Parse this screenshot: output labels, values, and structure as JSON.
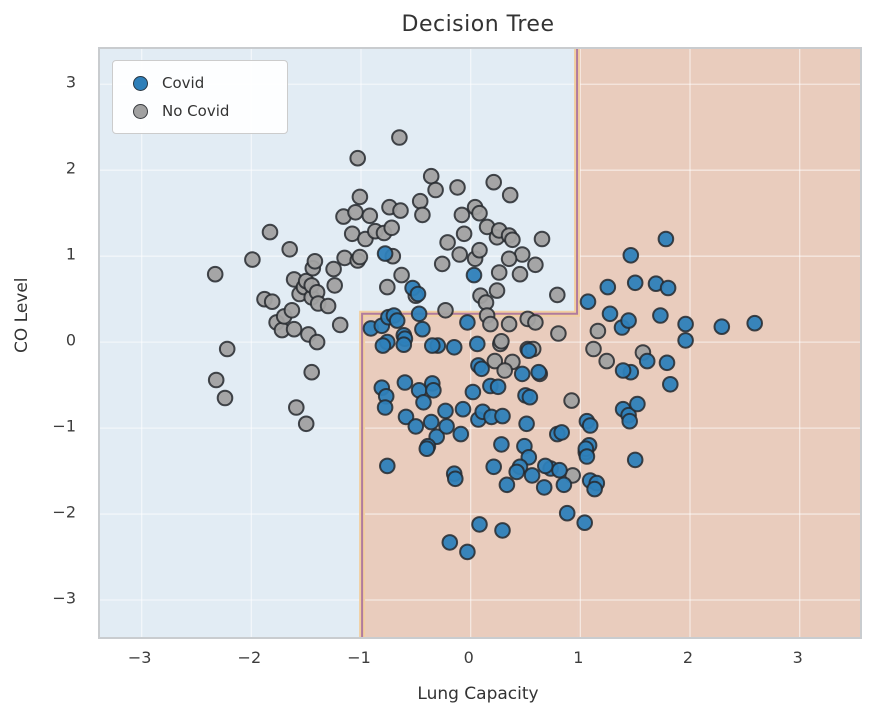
{
  "chart_data": {
    "type": "scatter",
    "title": "Decision Tree",
    "xlabel": "Lung Capacity",
    "ylabel": "CO Level",
    "xlim": [
      -3.38,
      3.55
    ],
    "ylim": [
      -3.43,
      3.41
    ],
    "xtick_values": [
      -3,
      -2,
      -1,
      0,
      1,
      2,
      3
    ],
    "xtick_labels": [
      "−3",
      "−2",
      "−1",
      "0",
      "1",
      "2",
      "3"
    ],
    "ytick_values": [
      -3,
      -2,
      -1,
      0,
      1,
      2,
      3
    ],
    "ytick_labels": [
      "−3",
      "−2",
      "−1",
      "0",
      "1",
      "2",
      "3"
    ],
    "grid": true,
    "grid_color": "rgba(255,255,255,0.55)",
    "frame_color": "#c9cccf",
    "marker": {
      "radius": 7.3,
      "edge_color": "#26292e",
      "edge_width": 2,
      "fill_opacity": 0.95
    },
    "decision_regions": {
      "covid_region_color": "#e9ccbd",
      "no_covid_region_color": "#e2ecf4",
      "boundary_x_left": -0.99,
      "boundary_x_right": 0.97,
      "boundary_y_split": 0.33,
      "boundary_outer_color": "#f2cfa0",
      "boundary_inner_color": "#a8719d"
    },
    "legend": {
      "position": "upper-left",
      "entries": [
        {
          "label": "Covid",
          "color": "#2e7fb9"
        },
        {
          "label": "No Covid",
          "color": "#a1a1a1"
        }
      ]
    },
    "series": [
      {
        "name": "No Covid",
        "color": "#a1a1a1",
        "points": [
          [
            -2.33,
            0.79
          ],
          [
            -2.22,
            -0.08
          ],
          [
            -2.32,
            -0.44
          ],
          [
            -2.24,
            -0.65
          ],
          [
            -1.99,
            0.96
          ],
          [
            -1.88,
            0.5
          ],
          [
            -1.81,
            0.47
          ],
          [
            -1.83,
            1.28
          ],
          [
            -1.77,
            0.23
          ],
          [
            -1.72,
            0.14
          ],
          [
            -1.7,
            0.3
          ],
          [
            -1.65,
            1.08
          ],
          [
            -1.63,
            0.37
          ],
          [
            -1.61,
            0.73
          ],
          [
            -1.61,
            0.15
          ],
          [
            -1.59,
            -0.76
          ],
          [
            -1.56,
            0.56
          ],
          [
            -1.52,
            0.64
          ],
          [
            -1.5,
            -0.95
          ],
          [
            -1.5,
            0.71
          ],
          [
            -1.48,
            0.09
          ],
          [
            -1.45,
            0.52
          ],
          [
            -1.45,
            0.66
          ],
          [
            -1.44,
            0.86
          ],
          [
            -1.42,
            0.94
          ],
          [
            -1.45,
            -0.35
          ],
          [
            -1.4,
            0.58
          ],
          [
            -1.4,
            0.0
          ],
          [
            -1.39,
            0.45
          ],
          [
            -1.3,
            0.42
          ],
          [
            -1.25,
            0.85
          ],
          [
            -1.24,
            0.66
          ],
          [
            -1.19,
            0.2
          ],
          [
            -1.15,
            0.98
          ],
          [
            -1.16,
            1.46
          ],
          [
            -1.08,
            1.26
          ],
          [
            -1.05,
            1.51
          ],
          [
            -1.03,
            0.95
          ],
          [
            -1.03,
            2.14
          ],
          [
            -1.01,
            1.69
          ],
          [
            -1.01,
            0.99
          ],
          [
            -0.96,
            1.2
          ],
          [
            -0.92,
            1.47
          ],
          [
            -0.87,
            1.29
          ],
          [
            -0.79,
            1.27
          ],
          [
            -0.76,
            0.64
          ],
          [
            -0.74,
            1.57
          ],
          [
            -0.71,
            1.0
          ],
          [
            -0.72,
            1.33
          ],
          [
            -0.65,
            2.38
          ],
          [
            -0.64,
            1.53
          ],
          [
            -0.63,
            0.78
          ],
          [
            -0.5,
            0.54
          ],
          [
            -0.46,
            1.64
          ],
          [
            -0.44,
            1.48
          ],
          [
            -0.36,
            1.93
          ],
          [
            -0.32,
            1.77
          ],
          [
            -0.26,
            0.91
          ],
          [
            -0.23,
            0.37
          ],
          [
            -0.21,
            1.16
          ],
          [
            -0.12,
            1.8
          ],
          [
            -0.08,
            1.48
          ],
          [
            -0.06,
            1.26
          ],
          [
            -0.1,
            1.02
          ],
          [
            0.04,
            1.57
          ],
          [
            0.08,
            1.5
          ],
          [
            0.04,
            0.97
          ],
          [
            0.08,
            1.07
          ],
          [
            0.15,
            1.34
          ],
          [
            0.21,
            1.86
          ],
          [
            0.24,
            1.22
          ],
          [
            0.26,
            1.3
          ],
          [
            0.35,
            1.24
          ],
          [
            0.36,
            1.71
          ],
          [
            0.38,
            1.19
          ],
          [
            0.47,
            1.02
          ],
          [
            0.35,
            0.97
          ],
          [
            0.26,
            0.81
          ],
          [
            0.45,
            0.79
          ],
          [
            0.59,
            0.9
          ],
          [
            0.65,
            1.2
          ],
          [
            0.24,
            0.6
          ],
          [
            0.09,
            0.54
          ],
          [
            0.14,
            0.46
          ],
          [
            0.79,
            0.55
          ],
          [
            0.15,
            0.31
          ],
          [
            0.18,
            0.21
          ],
          [
            0.35,
            0.21
          ],
          [
            0.52,
            0.27
          ],
          [
            0.59,
            0.23
          ],
          [
            0.8,
            0.1
          ],
          [
            0.27,
            -0.02
          ],
          [
            0.52,
            -0.08
          ],
          [
            0.22,
            -0.22
          ],
          [
            0.38,
            -0.23
          ],
          [
            0.31,
            -0.33
          ],
          [
            0.63,
            -0.37
          ],
          [
            0.57,
            -0.08
          ],
          [
            0.92,
            -0.68
          ],
          [
            0.93,
            -1.55
          ],
          [
            1.12,
            -0.08
          ],
          [
            1.24,
            -0.22
          ],
          [
            1.16,
            0.13
          ],
          [
            1.57,
            -0.12
          ],
          [
            0.28,
            0.01
          ]
        ]
      },
      {
        "name": "Covid",
        "color": "#2e7fb9",
        "points": [
          [
            -0.91,
            0.16
          ],
          [
            -0.81,
            0.19
          ],
          [
            -0.75,
            0.29
          ],
          [
            -0.7,
            0.31
          ],
          [
            -0.67,
            0.25
          ],
          [
            -0.78,
            1.03
          ],
          [
            -0.53,
            0.63
          ],
          [
            -0.48,
            0.56
          ],
          [
            0.03,
            0.78
          ],
          [
            -0.76,
            0.0
          ],
          [
            -0.61,
            0.08
          ],
          [
            -0.6,
            0.04
          ],
          [
            -0.47,
            0.33
          ],
          [
            -0.44,
            0.15
          ],
          [
            -0.3,
            -0.04
          ],
          [
            -0.15,
            -0.06
          ],
          [
            -0.03,
            0.23
          ],
          [
            0.06,
            -0.02
          ],
          [
            0.53,
            -0.1
          ],
          [
            1.07,
            0.47
          ],
          [
            1.25,
            0.64
          ],
          [
            1.27,
            0.33
          ],
          [
            1.38,
            0.17
          ],
          [
            1.44,
            0.25
          ],
          [
            1.73,
            0.31
          ],
          [
            1.96,
            0.21
          ],
          [
            2.29,
            0.18
          ],
          [
            2.59,
            0.22
          ],
          [
            1.96,
            0.02
          ],
          [
            1.78,
            1.2
          ],
          [
            1.46,
            1.01
          ],
          [
            1.5,
            0.69
          ],
          [
            1.69,
            0.68
          ],
          [
            1.8,
            0.63
          ],
          [
            -0.8,
            -0.04
          ],
          [
            -0.61,
            -0.03
          ],
          [
            -0.35,
            -0.04
          ],
          [
            0.07,
            -0.27
          ],
          [
            -0.81,
            -0.53
          ],
          [
            -0.77,
            -0.63
          ],
          [
            -0.78,
            -0.76
          ],
          [
            -0.6,
            -0.47
          ],
          [
            -0.47,
            -0.56
          ],
          [
            -0.43,
            -0.7
          ],
          [
            -0.35,
            -0.48
          ],
          [
            -0.34,
            -0.56
          ],
          [
            -0.59,
            -0.87
          ],
          [
            -0.5,
            -0.98
          ],
          [
            -0.36,
            -0.93
          ],
          [
            -0.31,
            -1.1
          ],
          [
            -0.23,
            -0.8
          ],
          [
            -0.22,
            -0.98
          ],
          [
            -0.07,
            -0.78
          ],
          [
            -0.09,
            -1.07
          ],
          [
            0.02,
            -0.58
          ],
          [
            0.07,
            -0.9
          ],
          [
            -0.39,
            -1.21
          ],
          [
            -0.76,
            -1.44
          ],
          [
            -0.4,
            -1.24
          ],
          [
            -0.15,
            -1.53
          ],
          [
            -0.14,
            -1.59
          ],
          [
            0.1,
            -0.31
          ],
          [
            0.18,
            -0.51
          ],
          [
            0.25,
            -0.52
          ],
          [
            0.11,
            -0.81
          ],
          [
            0.19,
            -0.87
          ],
          [
            0.29,
            -0.86
          ],
          [
            0.5,
            -0.62
          ],
          [
            0.54,
            -0.64
          ],
          [
            0.47,
            -0.37
          ],
          [
            0.62,
            -0.35
          ],
          [
            0.51,
            -0.95
          ],
          [
            0.28,
            -1.19
          ],
          [
            0.49,
            -1.21
          ],
          [
            0.53,
            -1.34
          ],
          [
            0.21,
            -1.45
          ],
          [
            0.45,
            -1.45
          ],
          [
            0.42,
            -1.51
          ],
          [
            0.33,
            -1.66
          ],
          [
            0.56,
            -1.55
          ],
          [
            0.67,
            -1.69
          ],
          [
            0.73,
            -1.47
          ],
          [
            0.81,
            -1.49
          ],
          [
            0.85,
            -1.66
          ],
          [
            0.88,
            -1.99
          ],
          [
            1.04,
            -2.1
          ],
          [
            1.05,
            -1.28
          ],
          [
            1.08,
            -1.2
          ],
          [
            1.09,
            -1.61
          ],
          [
            1.15,
            -1.64
          ],
          [
            1.13,
            -1.71
          ],
          [
            1.5,
            -1.37
          ],
          [
            0.08,
            -2.12
          ],
          [
            0.29,
            -2.19
          ],
          [
            -0.19,
            -2.33
          ],
          [
            -0.03,
            -2.44
          ],
          [
            1.39,
            -0.78
          ],
          [
            1.44,
            -0.85
          ],
          [
            1.45,
            -0.92
          ],
          [
            1.52,
            -0.72
          ],
          [
            1.61,
            -0.22
          ],
          [
            1.46,
            -0.35
          ],
          [
            1.39,
            -0.33
          ],
          [
            1.79,
            -0.24
          ],
          [
            1.82,
            -0.49
          ],
          [
            1.06,
            -0.92
          ],
          [
            1.09,
            -0.97
          ],
          [
            1.05,
            -1.24
          ],
          [
            1.06,
            -1.33
          ],
          [
            0.68,
            -1.44
          ],
          [
            0.79,
            -1.07
          ],
          [
            0.83,
            -1.05
          ]
        ]
      }
    ]
  }
}
